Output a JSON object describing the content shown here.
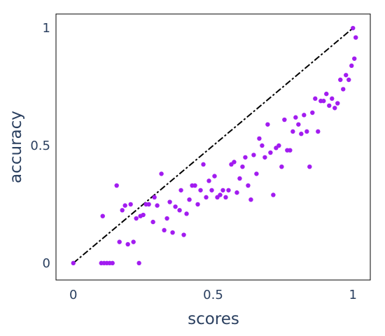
{
  "chart_data": {
    "type": "scatter",
    "xlabel": "scores",
    "ylabel": "accuracy",
    "xlim": [
      -0.062,
      1.062
    ],
    "ylim": [
      -0.072,
      1.06
    ],
    "x_ticks": [
      0,
      0.5,
      1
    ],
    "x_tick_labels": [
      "0",
      "0.5",
      "1"
    ],
    "y_ticks": [
      0,
      0.5,
      1
    ],
    "y_tick_labels": [
      "0",
      "0.5",
      "1"
    ],
    "grid": false,
    "legend": "none",
    "marker_color": "#a21cf0",
    "reference_line": {
      "style": "dash-dot",
      "color": "#000000",
      "x": [
        0,
        1
      ],
      "y": [
        0,
        1
      ]
    },
    "series": [
      {
        "points": [
          [
            0.0,
            0.0
          ],
          [
            0.1,
            0.0
          ],
          [
            0.11,
            0.0
          ],
          [
            0.12,
            0.0
          ],
          [
            0.13,
            0.0
          ],
          [
            0.14,
            0.0
          ],
          [
            0.235,
            0.0
          ],
          [
            0.105,
            0.2
          ],
          [
            0.155,
            0.33
          ],
          [
            0.165,
            0.09
          ],
          [
            0.175,
            0.225
          ],
          [
            0.185,
            0.245
          ],
          [
            0.195,
            0.08
          ],
          [
            0.205,
            0.25
          ],
          [
            0.215,
            0.09
          ],
          [
            0.225,
            0.19
          ],
          [
            0.24,
            0.2
          ],
          [
            0.25,
            0.205
          ],
          [
            0.26,
            0.25
          ],
          [
            0.27,
            0.25
          ],
          [
            0.285,
            0.175
          ],
          [
            0.29,
            0.28
          ],
          [
            0.3,
            0.245
          ],
          [
            0.315,
            0.38
          ],
          [
            0.325,
            0.14
          ],
          [
            0.335,
            0.19
          ],
          [
            0.345,
            0.26
          ],
          [
            0.355,
            0.13
          ],
          [
            0.365,
            0.24
          ],
          [
            0.38,
            0.225
          ],
          [
            0.385,
            0.31
          ],
          [
            0.395,
            0.12
          ],
          [
            0.405,
            0.21
          ],
          [
            0.415,
            0.27
          ],
          [
            0.425,
            0.33
          ],
          [
            0.435,
            0.33
          ],
          [
            0.445,
            0.25
          ],
          [
            0.455,
            0.31
          ],
          [
            0.465,
            0.42
          ],
          [
            0.475,
            0.28
          ],
          [
            0.485,
            0.35
          ],
          [
            0.495,
            0.31
          ],
          [
            0.505,
            0.37
          ],
          [
            0.515,
            0.28
          ],
          [
            0.525,
            0.29
          ],
          [
            0.535,
            0.31
          ],
          [
            0.545,
            0.28
          ],
          [
            0.555,
            0.31
          ],
          [
            0.565,
            0.42
          ],
          [
            0.575,
            0.43
          ],
          [
            0.585,
            0.3
          ],
          [
            0.595,
            0.36
          ],
          [
            0.605,
            0.41
          ],
          [
            0.615,
            0.45
          ],
          [
            0.625,
            0.33
          ],
          [
            0.635,
            0.27
          ],
          [
            0.645,
            0.46
          ],
          [
            0.655,
            0.38
          ],
          [
            0.665,
            0.53
          ],
          [
            0.675,
            0.5
          ],
          [
            0.685,
            0.45
          ],
          [
            0.695,
            0.59
          ],
          [
            0.705,
            0.47
          ],
          [
            0.715,
            0.29
          ],
          [
            0.725,
            0.49
          ],
          [
            0.735,
            0.5
          ],
          [
            0.745,
            0.41
          ],
          [
            0.755,
            0.61
          ],
          [
            0.765,
            0.48
          ],
          [
            0.775,
            0.48
          ],
          [
            0.785,
            0.56
          ],
          [
            0.795,
            0.62
          ],
          [
            0.805,
            0.59
          ],
          [
            0.815,
            0.55
          ],
          [
            0.825,
            0.63
          ],
          [
            0.835,
            0.56
          ],
          [
            0.845,
            0.41
          ],
          [
            0.855,
            0.64
          ],
          [
            0.865,
            0.7
          ],
          [
            0.875,
            0.56
          ],
          [
            0.885,
            0.69
          ],
          [
            0.895,
            0.69
          ],
          [
            0.905,
            0.72
          ],
          [
            0.915,
            0.67
          ],
          [
            0.925,
            0.7
          ],
          [
            0.935,
            0.66
          ],
          [
            0.945,
            0.68
          ],
          [
            0.955,
            0.78
          ],
          [
            0.965,
            0.74
          ],
          [
            0.975,
            0.8
          ],
          [
            0.985,
            0.78
          ],
          [
            0.995,
            0.84
          ],
          [
            1.005,
            0.87
          ],
          [
            1.01,
            0.96
          ],
          [
            1.0,
            1.0
          ]
        ]
      }
    ]
  }
}
